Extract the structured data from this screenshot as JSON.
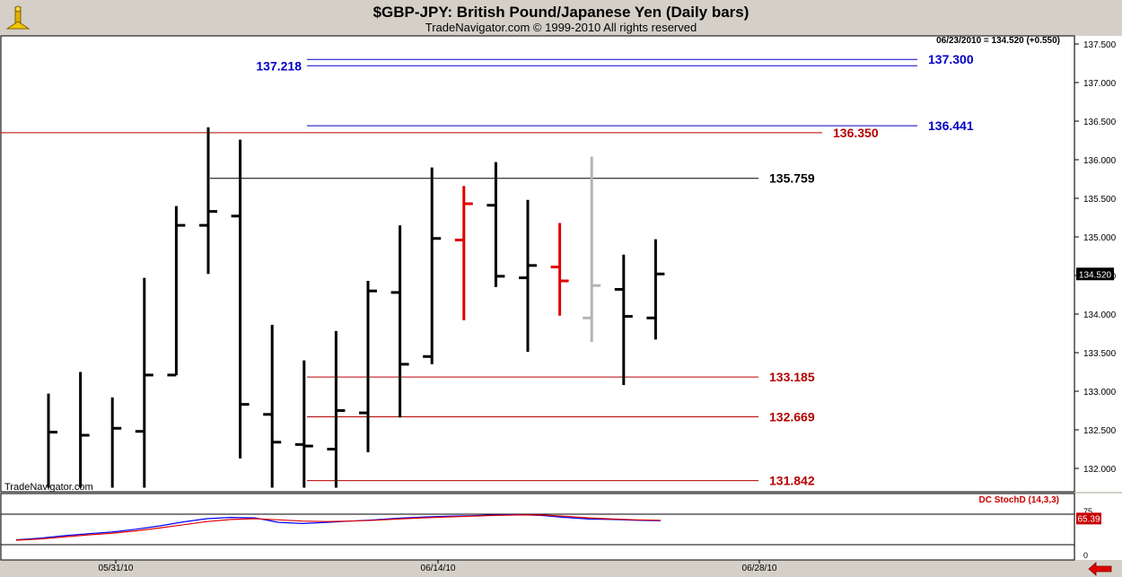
{
  "header": {
    "title": "$GBP-JPY:  British Pound/Japanese Yen  (Daily bars)",
    "subtitle": "TradeNavigator.com © 1999-2010 All rights reserved"
  },
  "chart_data": {
    "type": "ohlc",
    "info_line": "06/23/2010 = 134.520 (+0.550)",
    "watermark": "TradeNavigator.com",
    "last_price": "134.520",
    "ylim": [
      131.8,
      137.7
    ],
    "y_ticks": [
      "132.000",
      "132.500",
      "133.000",
      "133.500",
      "134.000",
      "134.500",
      "135.000",
      "135.500",
      "136.000",
      "136.500",
      "137.000",
      "137.500"
    ],
    "x_labels": [
      "05/31/10",
      "06/14/10",
      "06/28/10"
    ],
    "bars": [
      {
        "x": 0,
        "o": null,
        "h": 132.97,
        "l": 131.75,
        "c": 132.47,
        "color": "black"
      },
      {
        "x": 1,
        "o": null,
        "h": 133.25,
        "l": 131.75,
        "c": 132.43,
        "color": "black"
      },
      {
        "x": 2,
        "o": null,
        "h": 132.92,
        "l": 131.75,
        "c": 132.52,
        "color": "black"
      },
      {
        "x": 3,
        "o": 132.48,
        "h": 134.47,
        "l": 131.75,
        "c": 133.21,
        "color": "black"
      },
      {
        "x": 4,
        "o": 133.21,
        "h": 135.4,
        "l": 133.21,
        "c": 135.15,
        "color": "black"
      },
      {
        "x": 5,
        "o": 135.15,
        "h": 136.42,
        "l": 134.52,
        "c": 135.33,
        "color": "black"
      },
      {
        "x": 6,
        "o": 135.27,
        "h": 136.26,
        "l": 132.13,
        "c": 132.83,
        "color": "black"
      },
      {
        "x": 7,
        "o": 132.7,
        "h": 133.86,
        "l": 131.75,
        "c": 132.34,
        "color": "black"
      },
      {
        "x": 8,
        "o": 132.31,
        "h": 133.4,
        "l": 131.75,
        "c": 132.29,
        "color": "black"
      },
      {
        "x": 9,
        "o": 132.25,
        "h": 133.78,
        "l": 131.75,
        "c": 132.75,
        "color": "black"
      },
      {
        "x": 10,
        "o": 132.72,
        "h": 134.43,
        "l": 132.21,
        "c": 134.3,
        "color": "black"
      },
      {
        "x": 11,
        "o": 134.28,
        "h": 135.15,
        "l": 132.66,
        "c": 133.35,
        "color": "black"
      },
      {
        "x": 12,
        "o": 133.45,
        "h": 135.9,
        "l": 133.35,
        "c": 134.98,
        "color": "black"
      },
      {
        "x": 13,
        "o": 134.96,
        "h": 135.66,
        "l": 133.92,
        "c": 135.43,
        "color": "red"
      },
      {
        "x": 14,
        "o": 135.41,
        "h": 135.97,
        "l": 134.35,
        "c": 134.49,
        "color": "black"
      },
      {
        "x": 15,
        "o": 134.47,
        "h": 135.48,
        "l": 133.51,
        "c": 134.63,
        "color": "black"
      },
      {
        "x": 16,
        "o": 134.61,
        "h": 135.18,
        "l": 133.98,
        "c": 134.43,
        "color": "red"
      },
      {
        "x": 17,
        "o": 133.95,
        "h": 136.04,
        "l": 133.64,
        "c": 134.37,
        "color": "gray"
      },
      {
        "x": 18,
        "o": 134.32,
        "h": 134.77,
        "l": 133.08,
        "c": 133.97,
        "color": "black"
      },
      {
        "x": 19,
        "o": 133.95,
        "h": 134.97,
        "l": 133.67,
        "c": 134.52,
        "color": "black"
      }
    ],
    "levels": [
      {
        "value": 137.3,
        "label": "137.300",
        "color": "#0000c8",
        "side": "right"
      },
      {
        "value": 137.218,
        "label": "137.218",
        "color": "#0000c8",
        "side": "left"
      },
      {
        "value": 136.441,
        "label": "136.441",
        "color": "#0000c8",
        "side": "right"
      },
      {
        "value": 136.35,
        "label": "136.350",
        "color": "#b40000",
        "side": "right"
      },
      {
        "value": 135.759,
        "label": "135.759",
        "color": "#000000",
        "side": "right"
      },
      {
        "value": 133.185,
        "label": "133.185",
        "color": "#b40000",
        "side": "right"
      },
      {
        "value": 132.669,
        "label": "132.669",
        "color": "#b40000",
        "side": "right"
      },
      {
        "value": 131.842,
        "label": "131.842",
        "color": "#b40000",
        "side": "right"
      }
    ],
    "stoch": {
      "label": "DC StochD (14,3,3)",
      "value": "65.39",
      "ticks": [
        "75",
        "0"
      ],
      "series": [
        {
          "name": "%K",
          "color": "#0000ff",
          "values": [
            12,
            16,
            22,
            27,
            31,
            38,
            46,
            56,
            64,
            67,
            66,
            55,
            52,
            55,
            58,
            61,
            65,
            68,
            70,
            71,
            73,
            74,
            72,
            67,
            63,
            62,
            60,
            59
          ]
        },
        {
          "name": "%D",
          "color": "#e00000",
          "values": [
            11,
            14,
            19,
            24,
            28,
            34,
            41,
            49,
            57,
            62,
            64,
            61,
            58,
            57,
            58,
            60,
            63,
            66,
            68,
            70,
            72,
            73,
            73,
            70,
            66,
            63,
            61,
            60
          ]
        }
      ]
    }
  }
}
